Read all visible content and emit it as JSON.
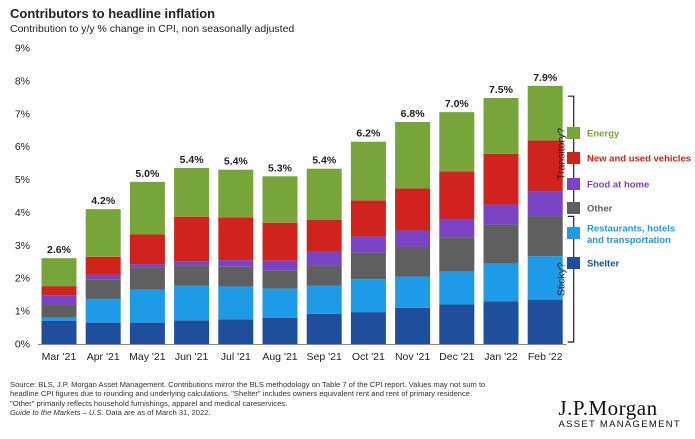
{
  "title": "Contributors to headline inflation",
  "subtitle": "Contribution to y/y % change in CPI, non seasonally adjusted",
  "source": {
    "line1": "Source: BLS, J.P. Morgan Asset Management. Contributions mirror the BLS methodology on Table 7 of the CPI report. Values may not sum to",
    "line2": "headline CPI figures due to rounding and underlying calculations. \"Shelter\" includes owners equivalent rent and rent of primary residence.",
    "line3": "\"Other\" primarily reflects household furnishings, apparel and medical careservices.",
    "guide": "Guide to the Markets – U.S.",
    "date": " Data are as of March 31, 2022."
  },
  "logo": {
    "main": "J.P.Morgan",
    "sub": "ASSET MANAGEMENT"
  },
  "chart_data": {
    "type": "bar",
    "stacked": true,
    "categories": [
      "Mar '21",
      "Apr '21",
      "May '21",
      "Jun '21",
      "Jul '21",
      "Aug '21",
      "Sep '21",
      "Oct '21",
      "Nov '21",
      "Dec '21",
      "Jan '22",
      "Feb '22"
    ],
    "totals_labels": [
      "2.6%",
      "4.2%",
      "5.0%",
      "5.4%",
      "5.4%",
      "5.3%",
      "5.4%",
      "6.2%",
      "6.8%",
      "7.0%",
      "7.5%",
      "7.9%"
    ],
    "series": [
      {
        "name": "Shelter",
        "color": "#1f4e9c",
        "values": [
          0.7,
          0.65,
          0.65,
          0.72,
          0.75,
          0.8,
          0.92,
          0.97,
          1.1,
          1.2,
          1.3,
          1.35
        ]
      },
      {
        "name": "Restaurants, hotels and transportation",
        "color": "#1e9be6",
        "values": [
          0.1,
          0.72,
          1.0,
          1.05,
          1.0,
          0.88,
          0.85,
          1.0,
          0.95,
          1.0,
          1.15,
          1.32
        ]
      },
      {
        "name": "Other",
        "color": "#5f5f5f",
        "values": [
          0.4,
          0.6,
          0.68,
          0.62,
          0.6,
          0.55,
          0.62,
          0.8,
          0.9,
          1.05,
          1.18,
          1.22
        ]
      },
      {
        "name": "Food at home",
        "color": "#7a43c6",
        "values": [
          0.28,
          0.13,
          0.1,
          0.13,
          0.2,
          0.3,
          0.42,
          0.5,
          0.5,
          0.55,
          0.6,
          0.75
        ]
      },
      {
        "name": "New and used vehicles",
        "color": "#d0231d",
        "values": [
          0.28,
          0.55,
          0.9,
          1.35,
          1.3,
          1.15,
          0.97,
          1.1,
          1.28,
          1.45,
          1.55,
          1.55
        ]
      },
      {
        "name": "Energy",
        "color": "#77a53a",
        "values": [
          0.85,
          1.45,
          1.6,
          1.48,
          1.45,
          1.42,
          1.55,
          1.78,
          2.02,
          1.8,
          1.7,
          1.66
        ]
      }
    ],
    "legend_order": [
      "Energy",
      "New and used vehicles",
      "Food at home",
      "Other",
      "Restaurants, hotels and transportation",
      "Shelter"
    ],
    "legend_position": "right",
    "ylim": [
      0,
      9
    ],
    "yticks": [
      0,
      1,
      2,
      3,
      4,
      5,
      6,
      7,
      8,
      9
    ],
    "ytick_format": "%",
    "grid": false,
    "annotations": [
      {
        "text": "Transitory?",
        "covers": [
          "Energy",
          "New and used vehicles",
          "Food at home"
        ],
        "range": [
          4.02,
          7.9
        ]
      },
      {
        "text": "Sticky?",
        "covers": [
          "Other",
          "Restaurants, hotels and transportation",
          "Shelter"
        ],
        "range": [
          0,
          3.88
        ]
      }
    ]
  }
}
